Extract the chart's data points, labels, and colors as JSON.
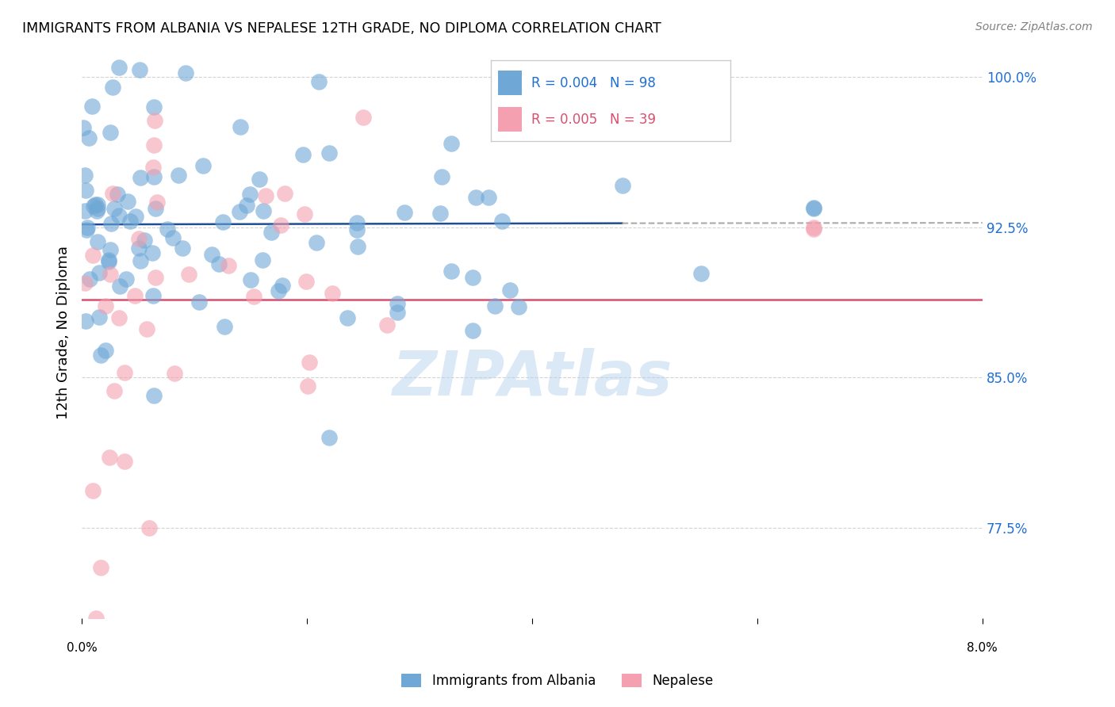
{
  "title": "IMMIGRANTS FROM ALBANIA VS NEPALESE 12TH GRADE, NO DIPLOMA CORRELATION CHART",
  "source": "Source: ZipAtlas.com",
  "ylabel": "12th Grade, No Diploma",
  "yticks": [
    77.5,
    85.0,
    92.5,
    100.0
  ],
  "ytick_labels": [
    "77.5%",
    "85.0%",
    "92.5%",
    "100.0%"
  ],
  "watermark": "ZIPAtlas",
  "legend_r1": "R = 0.004",
  "legend_n1": "N = 98",
  "legend_r2": "R = 0.005",
  "legend_n2": "N = 39",
  "legend_label1": "Immigrants from Albania",
  "legend_label2": "Nepalese",
  "blue_color": "#6fa8d6",
  "pink_color": "#f4a0b0",
  "blue_line_color": "#1f4e96",
  "pink_line_color": "#d94f6e",
  "blue_trend_y": 92.65,
  "pink_trend_y": 88.9,
  "xmin": 0.0,
  "xmax": 0.08,
  "ymin": 73.0,
  "ymax": 101.5,
  "n_albania": 98,
  "n_nepalese": 39
}
